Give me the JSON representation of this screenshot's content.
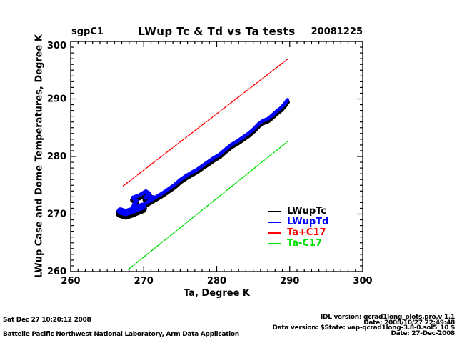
{
  "header": {
    "site": "sgpC1",
    "title": "LWup Tc & Td vs Ta tests",
    "date": "20081225"
  },
  "chart_data": {
    "type": "scatter",
    "title": "LWup Tc & Td vs Ta tests",
    "site": "sgpC1",
    "date_label": "20081225",
    "xlabel": "Ta, Degree K",
    "ylabel": "LWup Case and Dome Temperatures, Degree K",
    "xlim": [
      260,
      300
    ],
    "ylim": [
      260,
      300
    ],
    "x_ticks": [
      260,
      270,
      280,
      290,
      300
    ],
    "y_ticks": [
      260,
      270,
      280,
      290,
      300
    ],
    "minor_tick_interval": 1,
    "grid": false,
    "background": "#ffffff",
    "frame_color": "#000000",
    "legend_position": "inside lower right",
    "series": [
      {
        "name": "LWupTc",
        "color": "#000000",
        "style": "thick noisy band (case temperature), drawn under LWupTd",
        "points": "band"
      },
      {
        "name": "LWupTd",
        "color": "#0000ff",
        "style": "thick noisy band (dome temperature), drawn over LWupTc",
        "points": "band"
      },
      {
        "name": "Ta+C17",
        "color": "#ff0000",
        "style": "dash-dot reference line ~ Ta + 7 K",
        "points": [
          [
            267.2,
            274.9
          ],
          [
            289.8,
            297.0
          ]
        ]
      },
      {
        "name": "Ta-C17",
        "color": "#00dd00",
        "style": "dash-dot reference line ~ Ta - 7 K",
        "points": [
          [
            267.9,
            260.4
          ],
          [
            289.8,
            282.7
          ]
        ]
      }
    ],
    "band": {
      "main": [
        [
          266.8,
          270.6
        ],
        [
          267.4,
          270.3
        ],
        [
          268.0,
          270.4
        ],
        [
          268.6,
          270.7
        ],
        [
          269.4,
          271.1
        ],
        [
          270.2,
          271.8
        ],
        [
          271.0,
          272.4
        ],
        [
          271.8,
          273.0
        ],
        [
          272.6,
          273.6
        ],
        [
          273.4,
          274.3
        ],
        [
          274.2,
          275.0
        ],
        [
          275.0,
          275.9
        ],
        [
          275.8,
          276.6
        ],
        [
          276.6,
          277.2
        ],
        [
          277.2,
          277.6
        ],
        [
          278.0,
          278.3
        ],
        [
          278.8,
          279.0
        ],
        [
          279.6,
          279.7
        ],
        [
          280.4,
          280.3
        ],
        [
          281.2,
          281.2
        ],
        [
          282.0,
          282.0
        ],
        [
          282.8,
          282.6
        ],
        [
          283.6,
          283.3
        ],
        [
          284.4,
          284.0
        ],
        [
          285.2,
          284.9
        ],
        [
          285.8,
          285.7
        ],
        [
          286.4,
          286.2
        ],
        [
          287.0,
          286.5
        ],
        [
          287.6,
          287.1
        ],
        [
          288.2,
          287.8
        ],
        [
          288.8,
          288.4
        ],
        [
          289.3,
          289.1
        ],
        [
          289.7,
          289.8
        ]
      ],
      "blob": [
        [
          266.8,
          270.5
        ],
        [
          267.5,
          270.2
        ],
        [
          268.3,
          270.5
        ],
        [
          269.2,
          271.0
        ],
        [
          269.8,
          271.3
        ]
      ],
      "hook": [
        [
          268.6,
          271.4
        ],
        [
          269.0,
          272.3
        ],
        [
          268.5,
          272.8
        ],
        [
          269.4,
          273.2
        ],
        [
          270.3,
          273.9
        ],
        [
          270.8,
          273.5
        ],
        [
          270.2,
          272.8
        ],
        [
          271.3,
          272.9
        ]
      ]
    },
    "legend": [
      {
        "label": "LWupTc",
        "color": "#000000"
      },
      {
        "label": "LWupTd",
        "color": "#0000ff"
      },
      {
        "label": "Ta+C17",
        "color": "#ff0000"
      },
      {
        "label": "Ta-C17",
        "color": "#00dd00"
      }
    ]
  },
  "footer": {
    "left_line1": "Sat Dec 27 10:20:12 2008",
    "left_line2": "Battelle Pacific Northwest National Laboratory, Arm Data Application",
    "right_lines": [
      "IDL version: qcrad1long_plots.pro,v 1.1",
      "Date: 2008/10/27 22:49:48",
      "Data version: $State: vap-qcrad1long-3.8-0.sol5_10 $",
      "Date: 27-Dec-2008"
    ]
  }
}
